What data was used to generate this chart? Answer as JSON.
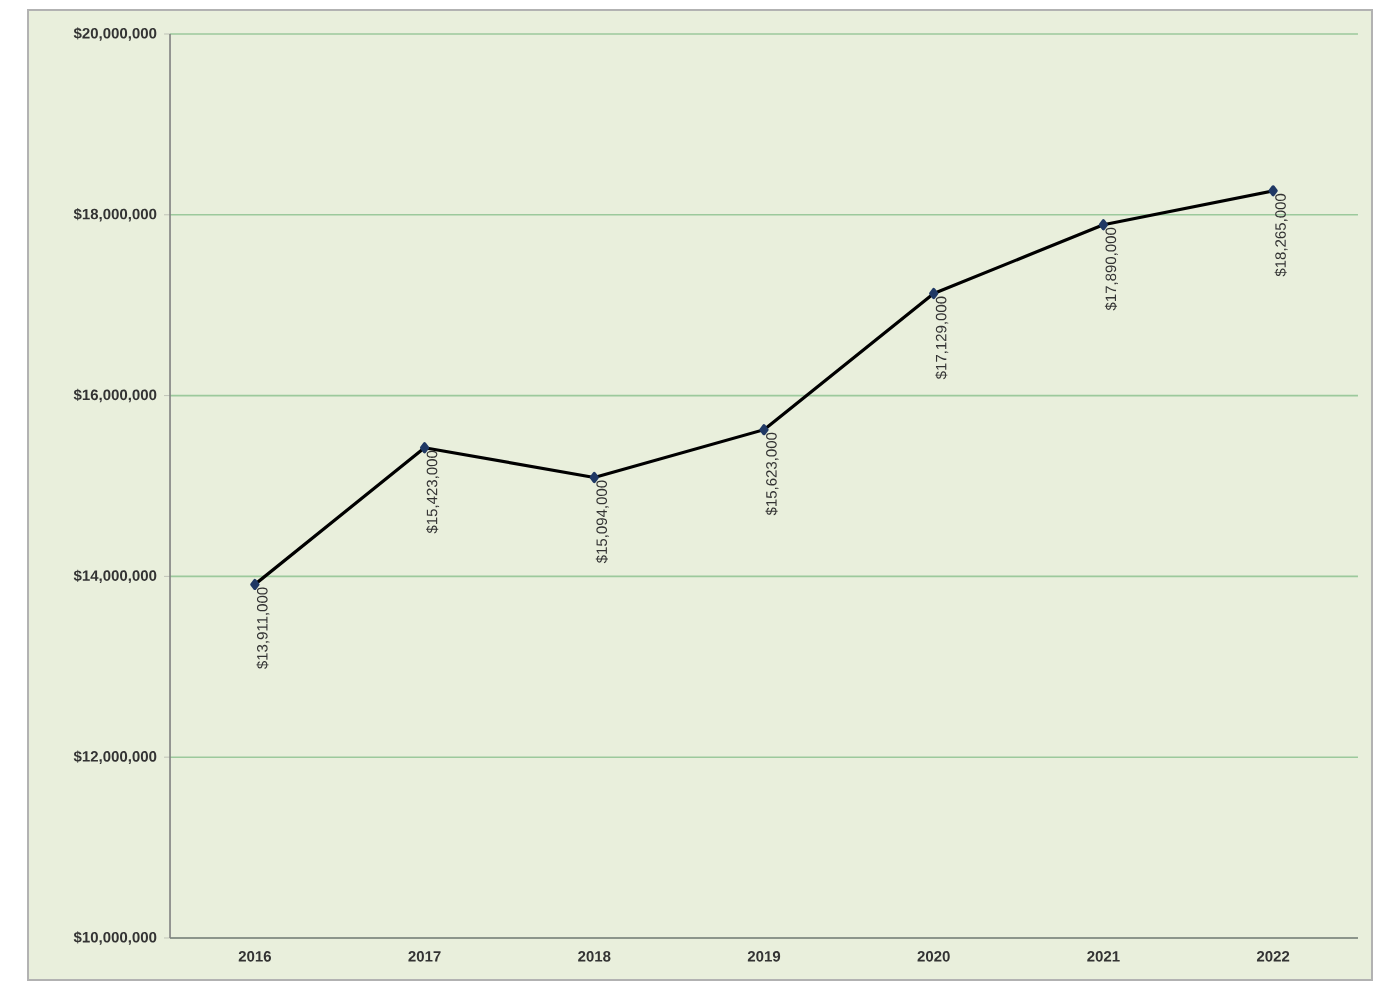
{
  "chart_data": {
    "type": "line",
    "categories": [
      "2016",
      "2017",
      "2018",
      "2019",
      "2020",
      "2021",
      "2022"
    ],
    "series": [
      {
        "color": "#000000",
        "values": [
          13911000,
          15423000,
          15094000,
          15623000,
          17129000,
          17890000,
          18265000
        ],
        "value_labels": [
          "$13,911,000",
          "$15,423,000",
          "$15,094,000",
          "$15,623,000",
          "$17,129,000",
          "$17,890,000",
          "$18,265,000"
        ]
      }
    ],
    "ylim": [
      10000000,
      20000000
    ],
    "yticks": [
      {
        "value": 10000000,
        "label": "$10,000,000"
      },
      {
        "value": 12000000,
        "label": "$12,000,000"
      },
      {
        "value": 14000000,
        "label": "$14,000,000"
      },
      {
        "value": 16000000,
        "label": "$16,000,000"
      },
      {
        "value": 18000000,
        "label": "$18,000,000"
      },
      {
        "value": 20000000,
        "label": "$20,000,000"
      }
    ],
    "grid": "y",
    "marker": "diamond",
    "line_style": "solid"
  }
}
